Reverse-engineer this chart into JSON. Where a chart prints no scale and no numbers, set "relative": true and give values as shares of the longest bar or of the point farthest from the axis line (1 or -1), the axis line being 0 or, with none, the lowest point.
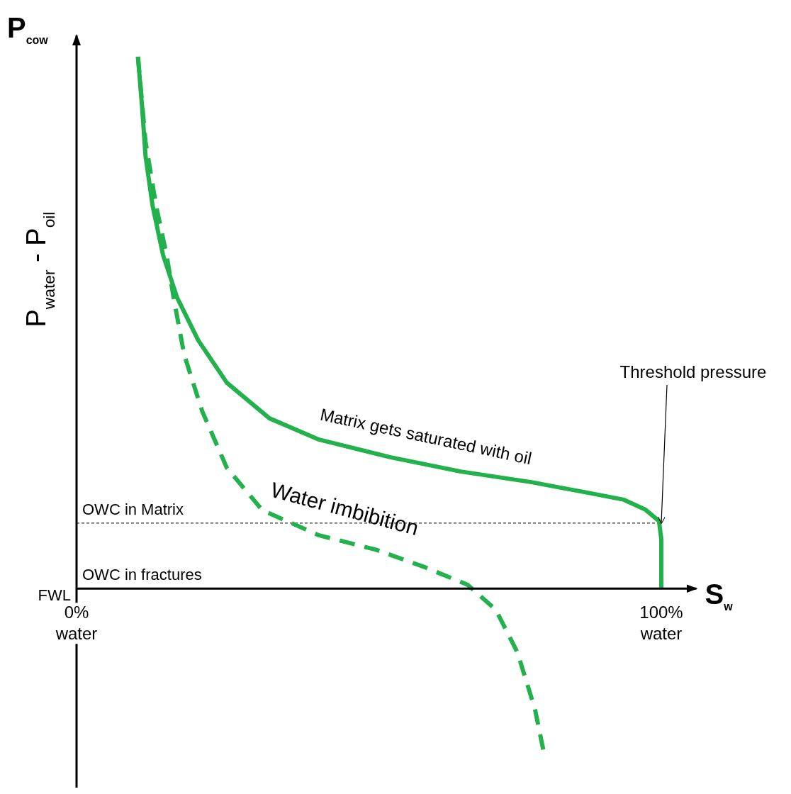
{
  "chart_data": {
    "type": "line",
    "title": "P$_{cow}$",
    "xlabel": "S$_{w}$",
    "ylabel": "P$_{water}$ - P$_{oil}$",
    "relative": true,
    "xlim": [
      0,
      106
    ],
    "xticks": [
      {
        "value": 0,
        "label": "0%\nwater"
      },
      {
        "value": 100,
        "label": "100%\nwater"
      }
    ],
    "series": [
      {
        "name": "Matrix gets saturated with oil",
        "color": "#22b14c",
        "line_style": "solid",
        "x": [
          10.5,
          11.2,
          11.8,
          13.0,
          14.8,
          17.2,
          20.8,
          25.7,
          33.0,
          41.5,
          53.6,
          65.7,
          77.8,
          87.5,
          93.6,
          97.2,
          99.6,
          100,
          100
        ],
        "values": [
          1.0,
          0.907,
          0.813,
          0.72,
          0.627,
          0.547,
          0.467,
          0.387,
          0.32,
          0.28,
          0.247,
          0.22,
          0.2,
          0.18,
          0.167,
          0.149,
          0.127,
          0.093,
          0
        ]
      },
      {
        "name": "Water imbibition",
        "color": "#22b14c",
        "line_style": "dashed",
        "x": [
          10.5,
          11.8,
          13.6,
          15.4,
          16.6,
          18.4,
          21.5,
          25.7,
          31.8,
          41.5,
          51.2,
          59.6,
          66.9,
          71.7,
          75.4,
          78.4,
          80.0
        ],
        "values": [
          1.0,
          0.84,
          0.72,
          0.627,
          0.547,
          0.44,
          0.333,
          0.227,
          0.147,
          0.1,
          0.073,
          0.04,
          0.007,
          -0.04,
          -0.12,
          -0.227,
          -0.313
        ]
      }
    ],
    "ref_lines": [
      {
        "axis": "y",
        "value": 0.123,
        "label": "OWC in Matrix",
        "color": "#000000",
        "line_style": "dashed"
      }
    ],
    "annotations": [
      "FWL",
      "OWC in fractures",
      {
        "text": "Threshold pressure",
        "x": 100,
        "y": 0.123
      }
    ],
    "grid": false,
    "legend": false
  }
}
